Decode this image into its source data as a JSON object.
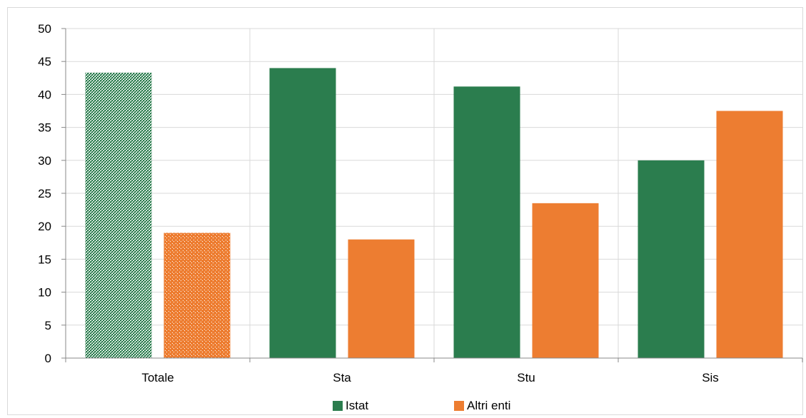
{
  "chart_data": {
    "type": "bar",
    "categories": [
      "Totale",
      "Sta",
      "Stu",
      "Sis"
    ],
    "series": [
      {
        "name": "Istat",
        "values": [
          43.3,
          44.0,
          41.2,
          30.0
        ],
        "color": "#2b7d4e"
      },
      {
        "name": "Altri enti",
        "values": [
          19.0,
          18.0,
          23.5,
          37.5
        ],
        "color": "#ed7d31"
      }
    ],
    "patterned_category": "Totale",
    "ylim": [
      0,
      50
    ],
    "yticks": [
      0,
      5,
      10,
      15,
      20,
      25,
      30,
      35,
      40,
      45,
      50
    ],
    "grid": true,
    "legend_position": "bottom"
  }
}
